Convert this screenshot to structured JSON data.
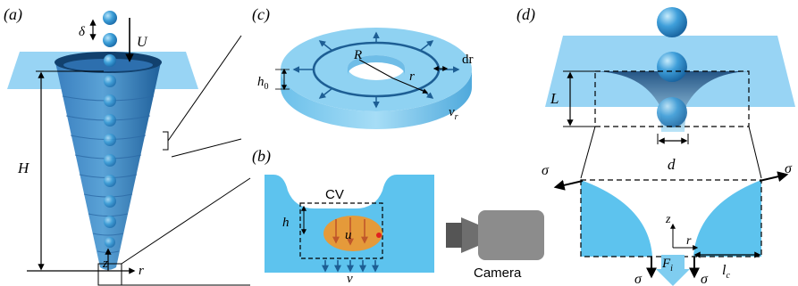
{
  "panels": {
    "a": {
      "label": "(a)",
      "delta": "δ",
      "U": "U",
      "H": "H",
      "z": "z",
      "r": "r"
    },
    "b": {
      "label": "(b)",
      "cv": "CV",
      "h": "h",
      "u": "u",
      "v": "v",
      "camera": "Camera"
    },
    "c": {
      "label": "(c)",
      "R": "R",
      "r": "r",
      "dr": "dr",
      "h0": "h",
      "h0_sub": "0",
      "vr": "v",
      "vr_sub": "r"
    },
    "d": {
      "label": "(d)",
      "L": "L",
      "d": "d",
      "sigma": "σ",
      "z": "z",
      "r": "r",
      "Fi": "F",
      "Fi_sub": "i",
      "lc": "l",
      "lc_sub": "c"
    }
  },
  "colors": {
    "sheet": "#86cdf2",
    "cone_dark": "#1f5f9a",
    "cone_light": "#5aa2d6",
    "ball": "#3d9fd8",
    "ring_top": "#8fd2f2",
    "ring_side": "#5fb6e4",
    "liquid": "#5dc3ee",
    "drop": "#e59a3a",
    "arrow": "#1d5e94",
    "camera": "#8c8c8c"
  }
}
